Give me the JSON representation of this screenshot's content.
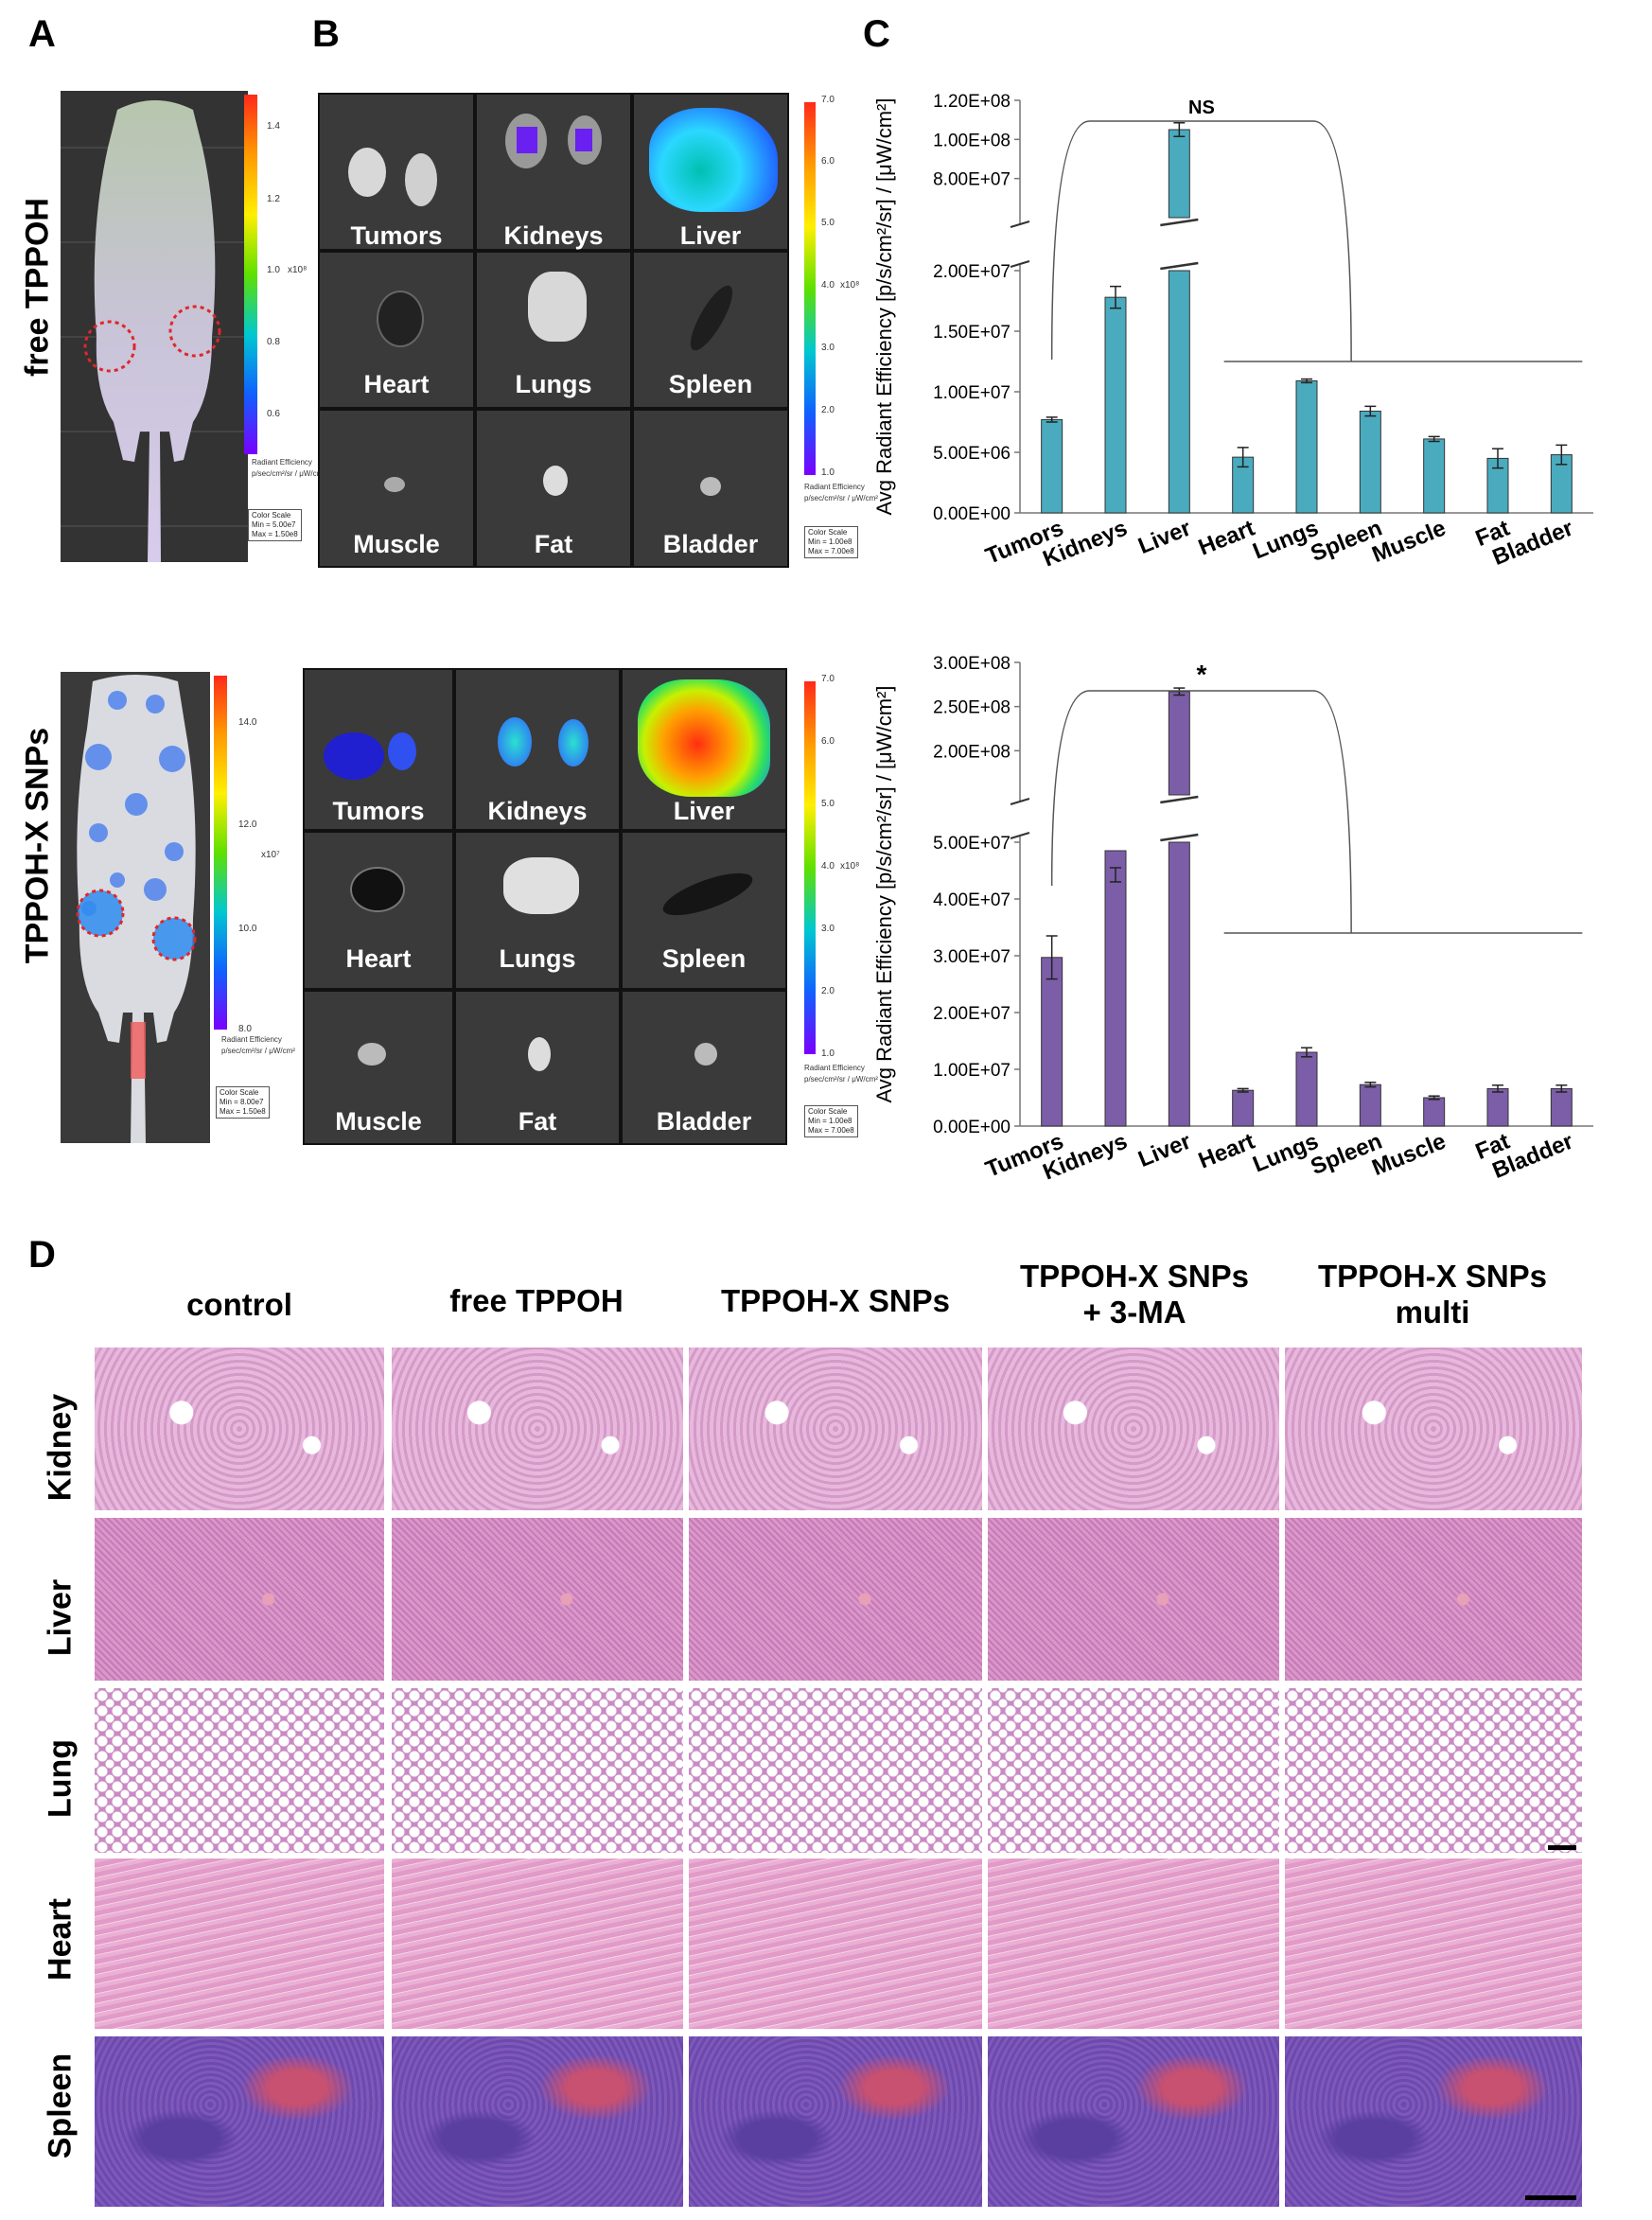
{
  "panels": {
    "A": "A",
    "B": "B",
    "C": "C",
    "D": "D"
  },
  "row_labels": {
    "top": "free TPPOH",
    "bottom": "TPPOH-X SNPs"
  },
  "mouse_top": {
    "colorbar_ticks": [
      "1.4",
      "1.2",
      "1.0",
      "0.8",
      "0.6"
    ],
    "exponent": "x10⁸",
    "cb_label": "Radiant Efficiency",
    "cb_units": "p/sec/cm²/sr / μW/cm²",
    "scale_title": "Color Scale",
    "scale_min": "Min = 5.00e7",
    "scale_max": "Max = 1.50e8"
  },
  "mouse_bottom": {
    "colorbar_ticks": [
      "14.0",
      "12.0",
      "10.0",
      "8.0"
    ],
    "exponent": "x10⁷",
    "cb_label": "Radiant Efficiency",
    "cb_units": "p/sec/cm²/sr / μW/cm²",
    "scale_title": "Color Scale",
    "scale_min": "Min = 8.00e7",
    "scale_max": "Max = 1.50e8"
  },
  "organ_panel": {
    "labels": [
      "Tumors",
      "Kidneys",
      "Liver",
      "Heart",
      "Lungs",
      "Spleen",
      "Muscle",
      "Fat",
      "Bladder"
    ],
    "colorbar_ticks": [
      "7.0",
      "6.0",
      "5.0",
      "4.0",
      "3.0",
      "2.0",
      "1.0"
    ],
    "exponent": "x10⁸",
    "cb_label": "Radiant Efficiency",
    "cb_units": "p/sec/cm²/sr / μW/cm²",
    "scale_title": "Color Scale",
    "scale_min": "Min = 1.00e8",
    "scale_max": "Max = 7.00e8"
  },
  "chart_data": [
    {
      "type": "bar",
      "ylabel": "Avg Radiant Efficiency [p/s/cm²/sr] / [μW/cm²]",
      "categories": [
        "Tumors",
        "Kidneys",
        "Liver",
        "Heart",
        "Lungs",
        "Spleen",
        "Muscle",
        "Fat",
        "Bladder"
      ],
      "values": [
        7700000.0,
        17800000.0,
        105000000.0,
        4600000.0,
        10900000.0,
        8400000.0,
        6100000.0,
        4500000.0,
        4800000.0
      ],
      "errors": [
        200000.0,
        900000.0,
        3500000.0,
        800000.0,
        150000.0,
        400000.0,
        200000.0,
        800000.0,
        800000.0
      ],
      "color": "#4aabbf",
      "yticks_lower": [
        "0.00E+00",
        "5.00E+06",
        "1.00E+07",
        "1.50E+07",
        "2.00E+07"
      ],
      "yticks_upper": [
        "8.00E+07",
        "1.00E+08",
        "1.20E+08"
      ],
      "broken_axis": true,
      "annotation": "NS"
    },
    {
      "type": "bar",
      "ylabel": "Avg Radiant Efficiency [p/s/cm²/sr] / [μW/cm²]",
      "categories": [
        "Tumors",
        "Kidneys",
        "Liver",
        "Heart",
        "Lungs",
        "Spleen",
        "Muscle",
        "Fat",
        "Bladder"
      ],
      "values": [
        29700000.0,
        48500000.0,
        267000000.0,
        6300000.0,
        13000000.0,
        7300000.0,
        5000000.0,
        6600000.0,
        6600000.0
      ],
      "errors": [
        3800000.0,
        3000000.0,
        4000000.0,
        300000.0,
        800000.0,
        400000.0,
        300000.0,
        600000.0,
        600000.0
      ],
      "color": "#7b5ea7",
      "yticks_lower": [
        "0.00E+00",
        "1.00E+07",
        "2.00E+07",
        "3.00E+07",
        "4.00E+07",
        "5.00E+07"
      ],
      "yticks_upper": [
        "2.00E+08",
        "2.50E+08",
        "3.00E+08"
      ],
      "broken_axis": true,
      "annotation": "*"
    }
  ],
  "histology": {
    "columns": [
      "control",
      "free TPPOH",
      "TPPOH-X SNPs",
      "TPPOH-X SNPs\n+ 3-MA",
      "TPPOH-X SNPs\nmulti"
    ],
    "rows": [
      "Kidney",
      "Liver",
      "Lung",
      "Heart",
      "Spleen"
    ]
  }
}
